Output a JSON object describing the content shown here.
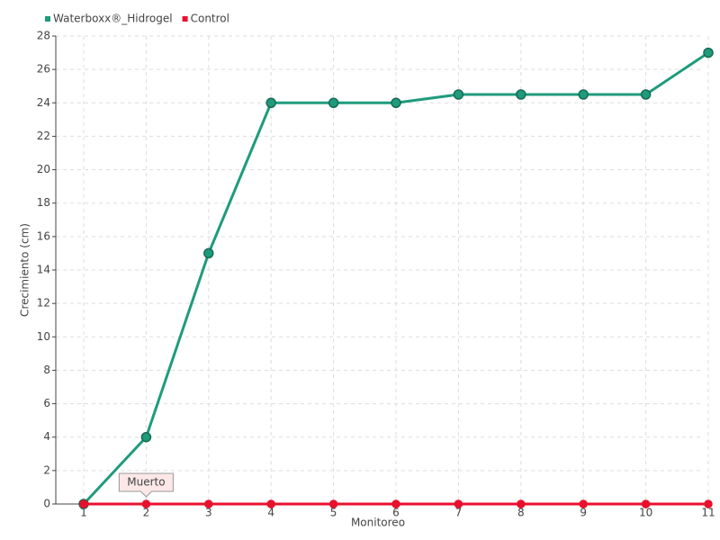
{
  "chart_data": {
    "type": "line",
    "x_label": "Monitoreo",
    "y_label": "Crecimiento (cm)",
    "categories": [
      "1",
      "2",
      "3",
      "4",
      "5",
      "6",
      "7",
      "8",
      "9",
      "10",
      "11"
    ],
    "series": [
      {
        "name": "Waterboxx®_Hidrogel",
        "color": "#1f9b7c",
        "values": [
          0,
          4,
          15,
          24,
          24,
          24,
          24.5,
          24.5,
          24.5,
          24.5,
          27
        ]
      },
      {
        "name": "Control",
        "color": "#e8112d",
        "values": [
          0,
          0,
          0,
          0,
          0,
          0,
          0,
          0,
          0,
          0,
          0
        ]
      }
    ],
    "ylim": [
      0,
      28
    ],
    "yticks": [
      0,
      2,
      4,
      6,
      8,
      10,
      12,
      14,
      16,
      18,
      20,
      22,
      24,
      26,
      28
    ],
    "grid": true,
    "legend": "top-left",
    "annotation": {
      "text": "Muerto",
      "category": "2"
    }
  }
}
